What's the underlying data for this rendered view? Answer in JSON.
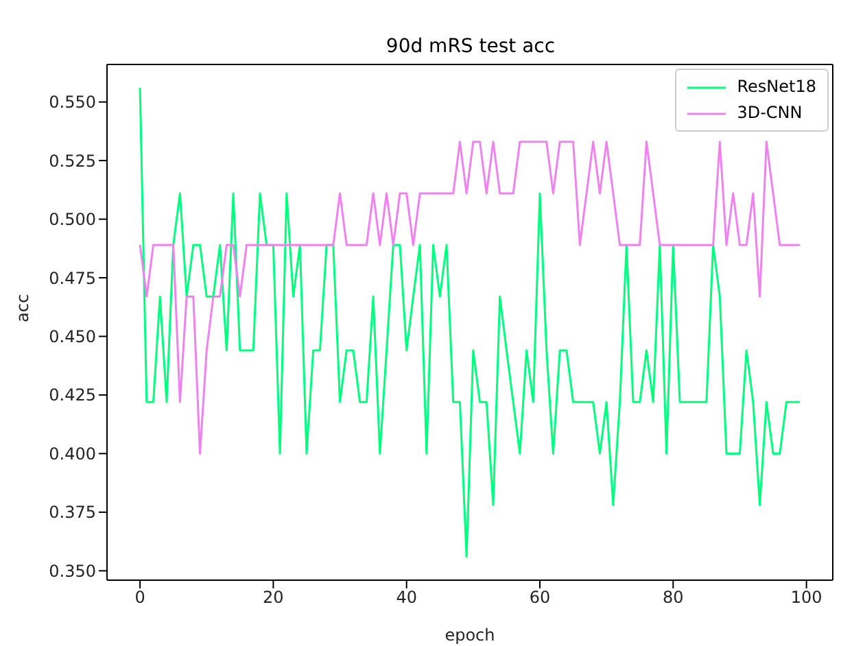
{
  "chart_data": {
    "type": "line",
    "title": "90d mRS test acc",
    "xlabel": "epoch",
    "ylabel": "acc",
    "x": [
      0,
      1,
      2,
      3,
      4,
      5,
      6,
      7,
      8,
      9,
      10,
      11,
      12,
      13,
      14,
      15,
      16,
      17,
      18,
      19,
      20,
      21,
      22,
      23,
      24,
      25,
      26,
      27,
      28,
      29,
      30,
      31,
      32,
      33,
      34,
      35,
      36,
      37,
      38,
      39,
      40,
      41,
      42,
      43,
      44,
      45,
      46,
      47,
      48,
      49,
      50,
      51,
      52,
      53,
      54,
      55,
      56,
      57,
      58,
      59,
      60,
      61,
      62,
      63,
      64,
      65,
      66,
      67,
      68,
      69,
      70,
      71,
      72,
      73,
      74,
      75,
      76,
      77,
      78,
      79,
      80,
      81,
      82,
      83,
      84,
      85,
      86,
      87,
      88,
      89,
      90,
      91,
      92,
      93,
      94,
      95,
      96,
      97,
      98,
      99
    ],
    "series": [
      {
        "name": "ResNet18",
        "color": "#00ff7f",
        "values": [
          0.556,
          0.422,
          0.422,
          0.467,
          0.422,
          0.489,
          0.511,
          0.467,
          0.489,
          0.489,
          0.467,
          0.467,
          0.489,
          0.444,
          0.511,
          0.444,
          0.444,
          0.444,
          0.511,
          0.489,
          0.489,
          0.4,
          0.511,
          0.467,
          0.489,
          0.4,
          0.444,
          0.444,
          0.489,
          0.489,
          0.422,
          0.444,
          0.444,
          0.422,
          0.422,
          0.467,
          0.4,
          0.444,
          0.489,
          0.489,
          0.444,
          0.467,
          0.489,
          0.4,
          0.489,
          0.467,
          0.489,
          0.422,
          0.422,
          0.356,
          0.444,
          0.422,
          0.422,
          0.378,
          0.467,
          0.444,
          0.422,
          0.4,
          0.444,
          0.422,
          0.511,
          0.444,
          0.4,
          0.444,
          0.444,
          0.422,
          0.422,
          0.422,
          0.422,
          0.4,
          0.422,
          0.378,
          0.422,
          0.489,
          0.422,
          0.422,
          0.444,
          0.422,
          0.489,
          0.4,
          0.489,
          0.422,
          0.422,
          0.422,
          0.422,
          0.422,
          0.489,
          0.467,
          0.4,
          0.4,
          0.4,
          0.444,
          0.422,
          0.378,
          0.422,
          0.4,
          0.4,
          0.422,
          0.422,
          0.422
        ]
      },
      {
        "name": "3D-CNN",
        "color": "#ee82ee",
        "values": [
          0.489,
          0.467,
          0.489,
          0.489,
          0.489,
          0.489,
          0.422,
          0.467,
          0.467,
          0.4,
          0.444,
          0.467,
          0.467,
          0.489,
          0.489,
          0.467,
          0.489,
          0.489,
          0.489,
          0.489,
          0.489,
          0.489,
          0.489,
          0.489,
          0.489,
          0.489,
          0.489,
          0.489,
          0.489,
          0.489,
          0.511,
          0.489,
          0.489,
          0.489,
          0.489,
          0.511,
          0.489,
          0.511,
          0.489,
          0.511,
          0.511,
          0.489,
          0.511,
          0.511,
          0.511,
          0.511,
          0.511,
          0.511,
          0.533,
          0.511,
          0.533,
          0.533,
          0.511,
          0.533,
          0.511,
          0.511,
          0.511,
          0.533,
          0.533,
          0.533,
          0.533,
          0.533,
          0.511,
          0.533,
          0.533,
          0.533,
          0.489,
          0.511,
          0.533,
          0.511,
          0.533,
          0.511,
          0.489,
          0.489,
          0.489,
          0.489,
          0.533,
          0.511,
          0.489,
          0.489,
          0.489,
          0.489,
          0.489,
          0.489,
          0.489,
          0.489,
          0.489,
          0.533,
          0.489,
          0.511,
          0.489,
          0.489,
          0.511,
          0.467,
          0.533,
          0.511,
          0.489,
          0.489,
          0.489,
          0.489
        ]
      }
    ],
    "xlim": [
      -4.95,
      103.95
    ],
    "xticks": [
      0,
      20,
      40,
      60,
      80,
      100
    ],
    "ylim": [
      0.346,
      0.566
    ],
    "yticks": [
      {
        "value": 0.35,
        "label": "0.350"
      },
      {
        "value": 0.375,
        "label": "0.375"
      },
      {
        "value": 0.4,
        "label": "0.400"
      },
      {
        "value": 0.425,
        "label": "0.425"
      },
      {
        "value": 0.45,
        "label": "0.450"
      },
      {
        "value": 0.475,
        "label": "0.475"
      },
      {
        "value": 0.5,
        "label": "0.500"
      },
      {
        "value": 0.525,
        "label": "0.525"
      },
      {
        "value": 0.55,
        "label": "0.550"
      }
    ],
    "grid": false,
    "legend": "top right",
    "marker": "none",
    "line_style": "solid"
  }
}
